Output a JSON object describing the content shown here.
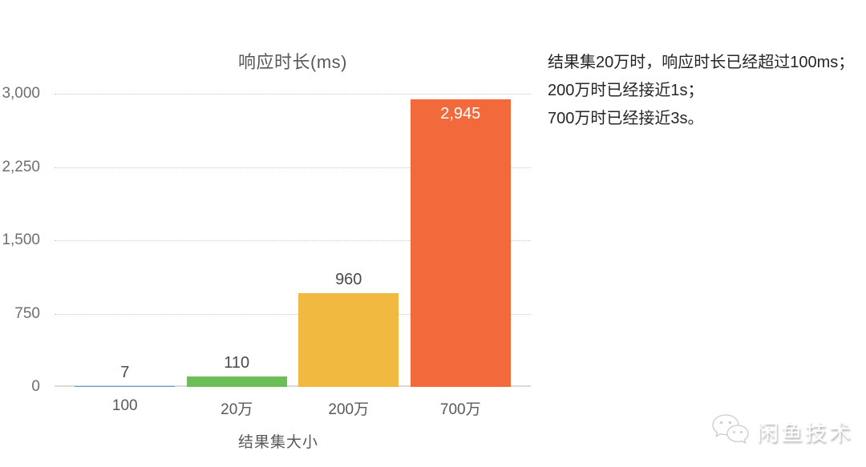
{
  "chart_data": {
    "type": "bar",
    "title": "响应时长(ms)",
    "xlabel": "结果集大小",
    "ylabel": "",
    "categories": [
      "100",
      "20万",
      "200万",
      "700万"
    ],
    "values": [
      7,
      110,
      960,
      2945
    ],
    "data_labels": [
      "7",
      "110",
      "960",
      "2,945"
    ],
    "label_inside": [
      false,
      false,
      false,
      true
    ],
    "bar_colors": [
      "#5b9bd5",
      "#6cbe56",
      "#f1b93f",
      "#f26a3b"
    ],
    "yticks": [
      0,
      750,
      1500,
      2250,
      3000
    ],
    "ytick_labels": [
      "0",
      "750",
      "1,500",
      "2,250",
      "3,000"
    ],
    "ylim": [
      0,
      3000
    ],
    "grid": "horizontal-dotted",
    "legend": "none"
  },
  "annotation": {
    "lines": [
      "结果集20万时，响应时长已经超过100ms；",
      "200万时已经接近1s；",
      "700万时已经接近3s。"
    ]
  },
  "watermark": {
    "icon": "wechat-icon",
    "text": "闲鱼技术"
  },
  "colors": {
    "background": "#ffffff",
    "title_text": "#595959",
    "tick_text": "#6e6e6e",
    "gridline": "#c9c9c9",
    "axis_line": "#d9d9d9",
    "value_label": "#4a4a4a",
    "value_label_inside": "#ffffff",
    "annotation_text": "#262626"
  }
}
